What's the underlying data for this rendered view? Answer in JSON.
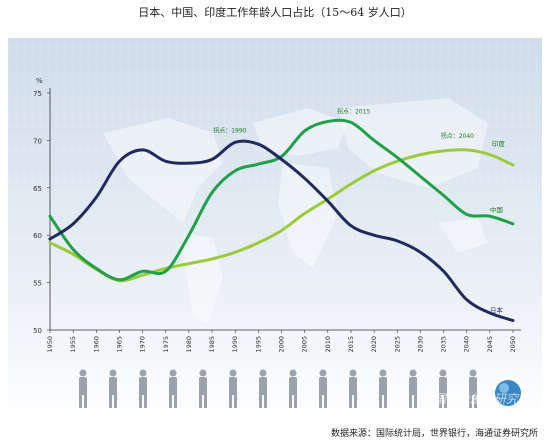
{
  "chart_data": {
    "type": "line",
    "title": "日本、中国、印度工作年龄人口占比（15～64 岁人口）",
    "ylabel": "%",
    "ylim": [
      50,
      75
    ],
    "yticks": [
      "75",
      "70",
      "65",
      "60",
      "55",
      "50"
    ],
    "categories": [
      "1950",
      "1955",
      "1960",
      "1965",
      "1970",
      "1975",
      "1980",
      "1985",
      "1990",
      "1995",
      "2000",
      "2005",
      "2010",
      "2015",
      "2020",
      "2025",
      "2030",
      "2035",
      "2040",
      "2045",
      "2050"
    ],
    "series": [
      {
        "name": "日本",
        "color": "#1f2a5e",
        "values": [
          59.6,
          61.2,
          64.0,
          67.8,
          69.0,
          67.8,
          67.6,
          68.0,
          69.8,
          69.6,
          68.0,
          66.0,
          63.6,
          61.0,
          60.0,
          59.4,
          58.2,
          56.2,
          53.2,
          51.8,
          51.0
        ]
      },
      {
        "name": "中国",
        "color": "#20a048",
        "values": [
          62.0,
          58.5,
          56.5,
          55.3,
          56.2,
          56.2,
          60.0,
          64.5,
          66.8,
          67.5,
          68.3,
          71.0,
          72.0,
          71.9,
          70.0,
          68.2,
          66.2,
          64.2,
          62.2,
          62.0,
          61.2
        ]
      },
      {
        "name": "印度",
        "color": "#9bcb3c",
        "values": [
          59.2,
          58.0,
          56.4,
          55.2,
          55.8,
          56.5,
          57.0,
          57.5,
          58.2,
          59.2,
          60.5,
          62.3,
          63.8,
          65.4,
          66.8,
          67.8,
          68.5,
          68.9,
          69.0,
          68.5,
          67.4
        ]
      }
    ],
    "annotations": [
      {
        "text": "拐点：1990",
        "series": "日本",
        "x": "1990"
      },
      {
        "text": "拐点：2015",
        "series": "中国",
        "x": "2015"
      },
      {
        "text": "拐点：2040",
        "series": "印度",
        "x": "2040"
      }
    ],
    "grid": false,
    "legend": "inline labels at line ends"
  },
  "source": "数据来源：国际统计局，世界银行，海通证券研究所",
  "watermark": "中国产业发展研究网"
}
